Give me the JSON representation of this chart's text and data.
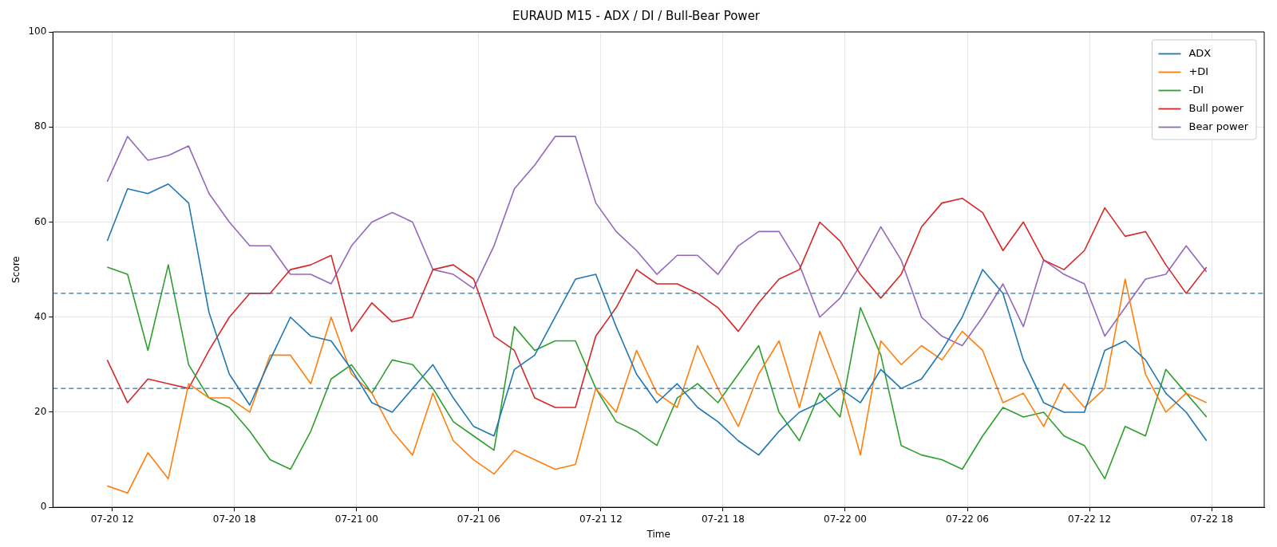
{
  "chart_data": {
    "type": "line",
    "title": "EURAUD M15 - ADX / DI / Bull-Bear Power",
    "xlabel": "Time",
    "ylabel": "Score",
    "x": [
      "--07-20T11:45",
      "--07-20T12:45",
      "--07-20T13:45",
      "--07-20T14:45",
      "--07-20T15:45",
      "--07-20T16:45",
      "--07-20T17:45",
      "--07-20T18:45",
      "--07-20T19:45",
      "--07-20T20:45",
      "--07-20T21:45",
      "--07-20T22:45",
      "--07-20T23:45",
      "--07-21T00:45",
      "--07-21T01:45",
      "--07-21T02:45",
      "--07-21T03:45",
      "--07-21T04:45",
      "--07-21T05:45",
      "--07-21T06:45",
      "--07-21T07:45",
      "--07-21T08:45",
      "--07-21T09:45",
      "--07-21T10:45",
      "--07-21T11:45",
      "--07-21T12:45",
      "--07-21T13:45",
      "--07-21T14:45",
      "--07-21T15:45",
      "--07-21T16:45",
      "--07-21T17:45",
      "--07-21T18:45",
      "--07-21T19:45",
      "--07-21T20:45",
      "--07-21T21:45",
      "--07-21T22:45",
      "--07-21T23:45",
      "--07-22T00:45",
      "--07-22T01:45",
      "--07-22T02:45",
      "--07-22T03:45",
      "--07-22T04:45",
      "--07-22T05:45",
      "--07-22T06:45",
      "--07-22T07:45",
      "--07-22T08:45",
      "--07-22T09:45",
      "--07-22T10:45",
      "--07-22T11:45",
      "--07-22T12:45",
      "--07-22T13:45",
      "--07-22T14:45",
      "--07-22T15:45",
      "--07-22T16:45",
      "--07-22T17:45"
    ],
    "series": [
      {
        "name": "ADX",
        "color": "#1f77b4",
        "values": [
          56,
          67,
          66,
          68,
          64,
          41,
          28,
          21.5,
          31,
          40,
          36,
          35,
          29,
          22,
          20,
          25,
          30,
          23,
          17,
          15,
          29,
          32,
          40,
          48,
          49,
          38,
          28,
          22,
          26,
          21,
          18,
          14,
          11,
          16,
          20,
          22,
          25,
          22,
          29,
          25,
          27,
          33,
          40,
          50,
          45,
          31,
          22,
          20,
          20,
          33,
          35,
          31,
          24,
          20,
          14
        ]
      },
      {
        "name": "+DI",
        "color": "#ff7f0e",
        "values": [
          4.5,
          3,
          11.5,
          6,
          26,
          23,
          23,
          20,
          32,
          32,
          26,
          40,
          28,
          24,
          16,
          11,
          24,
          14,
          10,
          7,
          12,
          10,
          8,
          9,
          25,
          20,
          33,
          24,
          21,
          34,
          25,
          17,
          28,
          35,
          21,
          37,
          26,
          11,
          35,
          30,
          34,
          31,
          37,
          33,
          22,
          24,
          17,
          26,
          21,
          25,
          48,
          28,
          20,
          24,
          22
        ]
      },
      {
        "name": "-DI",
        "color": "#2ca02c",
        "values": [
          50.5,
          49,
          33,
          51,
          30,
          23,
          21,
          16,
          10,
          8,
          16,
          27,
          30,
          24,
          31,
          30,
          25,
          18,
          15,
          12,
          38,
          33,
          35,
          35,
          25,
          18,
          16,
          13,
          23,
          26,
          22,
          28,
          34,
          20,
          14,
          24,
          19,
          42,
          32,
          13,
          11,
          10,
          8,
          15,
          21,
          19,
          20,
          15,
          13,
          6,
          17,
          15,
          29,
          24,
          19
        ]
      },
      {
        "name": "Bull power",
        "color": "#d62728",
        "values": [
          31,
          22,
          27,
          26,
          25,
          33,
          40,
          45,
          45,
          50,
          51,
          53,
          37,
          43,
          39,
          40,
          50,
          51,
          48,
          36,
          33,
          23,
          21,
          21,
          36,
          42,
          50,
          47,
          47,
          45,
          42,
          37,
          43,
          48,
          50,
          60,
          56,
          49,
          44,
          49,
          59,
          64,
          65,
          62,
          54,
          60,
          52,
          50,
          54,
          63,
          57,
          58,
          51,
          45,
          50.5
        ]
      },
      {
        "name": "Bear power",
        "color": "#9467bd",
        "values": [
          68.5,
          78,
          73,
          74,
          76,
          66,
          60,
          55,
          55,
          49,
          49,
          47,
          55,
          60,
          62,
          60,
          50,
          49,
          46,
          55,
          67,
          72,
          78,
          78,
          64,
          58,
          54,
          49,
          53,
          53,
          49,
          55,
          58,
          58,
          51,
          40,
          44,
          51,
          59,
          52,
          40,
          36,
          34,
          40,
          47,
          38,
          52,
          49,
          47,
          36,
          42,
          48,
          49,
          55,
          49.5
        ]
      }
    ],
    "xlim": [
      "--07-20T09:05",
      "--07-22T20:35"
    ],
    "xticks": [
      {
        "value": "--07-20T12:00",
        "label": "07-20 12"
      },
      {
        "value": "--07-20T18:00",
        "label": "07-20 18"
      },
      {
        "value": "--07-21T00:00",
        "label": "07-21 00"
      },
      {
        "value": "--07-21T06:00",
        "label": "07-21 06"
      },
      {
        "value": "--07-21T12:00",
        "label": "07-21 12"
      },
      {
        "value": "--07-21T18:00",
        "label": "07-21 18"
      },
      {
        "value": "--07-22T00:00",
        "label": "07-22 00"
      },
      {
        "value": "--07-22T06:00",
        "label": "07-22 06"
      },
      {
        "value": "--07-22T12:00",
        "label": "07-22 12"
      },
      {
        "value": "--07-22T18:00",
        "label": "07-22 18"
      }
    ],
    "ylim": [
      0,
      100
    ],
    "yticks": [
      0,
      20,
      40,
      60,
      80,
      100
    ],
    "ref_lines": [
      {
        "axis": "y",
        "value": 45,
        "color": "#1f77b4",
        "line_style": "dashed"
      },
      {
        "axis": "y",
        "value": 25,
        "color": "#1f77b4",
        "line_style": "dashed"
      }
    ],
    "grid": true,
    "legend": "top right",
    "marker": "none",
    "line_style": "solid"
  }
}
